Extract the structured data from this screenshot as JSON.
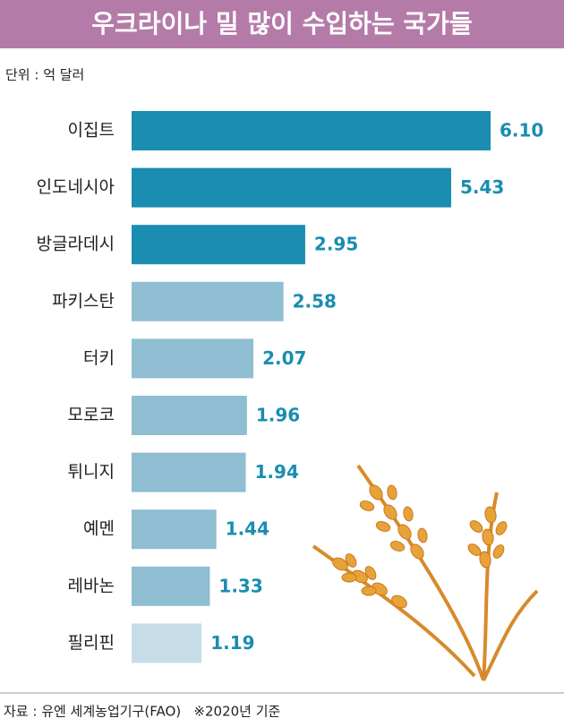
{
  "chart_data": {
    "type": "bar",
    "orientation": "horizontal",
    "title": "우크라이나 밀 많이 수입하는 국가들",
    "unit": "단위 : 억 달러",
    "source": "자료 : 유엔 세계농업기구(FAO)   ※2020년 기준",
    "categories": [
      "이집트",
      "인도네시아",
      "방글라데시",
      "파키스탄",
      "터키",
      "모로코",
      "튀니지",
      "예멘",
      "레바논",
      "필리핀"
    ],
    "values": [
      6.1,
      5.43,
      2.95,
      2.58,
      2.07,
      1.96,
      1.94,
      1.44,
      1.33,
      1.19
    ],
    "value_labels": [
      "6.10",
      "5.43",
      "2.95",
      "2.58",
      "2.07",
      "1.96",
      "1.94",
      "1.44",
      "1.33",
      "1.19"
    ],
    "colors": [
      "#1a8db0",
      "#1a8db0",
      "#1a8db0",
      "#8fbdd2",
      "#8fbdd2",
      "#8fbdd2",
      "#8fbdd2",
      "#8fbdd2",
      "#8fbdd2",
      "#c6dde7"
    ],
    "label_color": "#1a8db0"
  }
}
